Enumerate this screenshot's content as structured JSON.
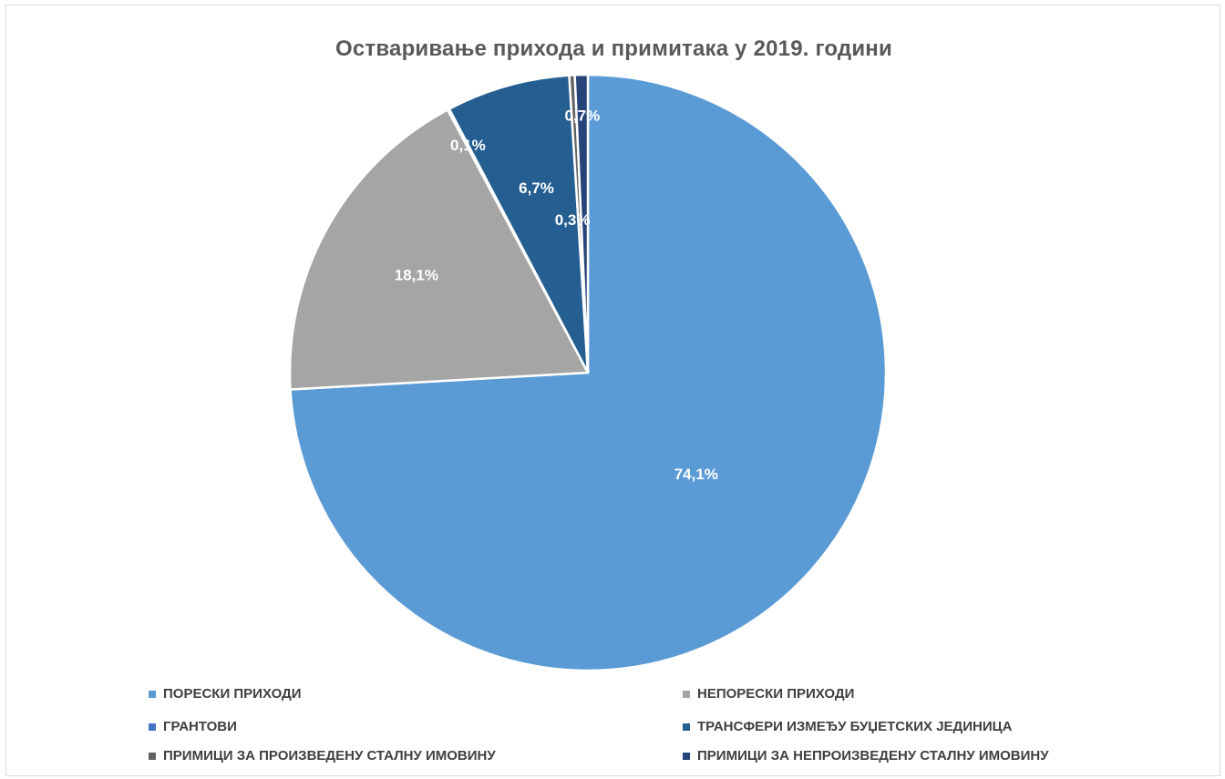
{
  "chart_data": {
    "type": "pie",
    "title": "Остваривање прихода и примитака у 2019. години",
    "legend_position": "bottom",
    "slices": [
      {
        "name": "ПОРЕСКИ ПРИХОДИ",
        "value": 74.1,
        "label": "74,1%",
        "color": "#5b9bd5"
      },
      {
        "name": "НЕПОРЕСКИ ПРИХОДИ",
        "value": 18.1,
        "label": "18,1%",
        "color": "#a5a5a5"
      },
      {
        "name": "ГРАНТОВИ",
        "value": 0.1,
        "label": "0,1%",
        "color": "#4472c4"
      },
      {
        "name": "ТРАНСФЕРИ ИЗМЕЂУ БУЏЕТСКИХ ЈЕДИНИЦА",
        "value": 6.7,
        "label": "6,7%",
        "color": "#255e91"
      },
      {
        "name": "ПРИМИЦИ ЗА ПРОИЗВЕДЕНУ СТАЛНУ ИМОВИНУ",
        "value": 0.3,
        "label": "0,3%",
        "color": "#636363"
      },
      {
        "name": "ПРИМИЦИ ЗА НЕПРОИЗВЕДЕНУ СТАЛНУ ИМОВИНУ",
        "value": 0.7,
        "label": "0,7%",
        "color": "#264478"
      }
    ]
  }
}
